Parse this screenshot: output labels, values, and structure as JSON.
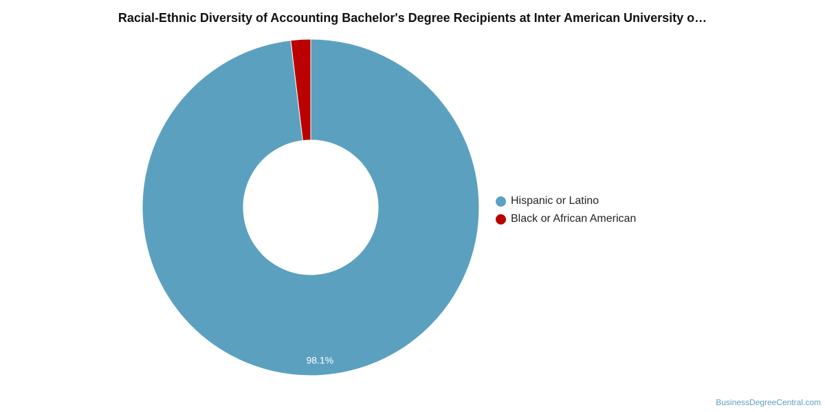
{
  "chart_data": {
    "type": "pie",
    "donut": true,
    "title": "Racial-Ethnic Diversity of Accounting Bachelor's Degree Recipients at Inter American University o…",
    "categories": [
      "Hispanic or Latino",
      "Black or African American"
    ],
    "values": [
      98.1,
      1.9
    ],
    "colors": [
      "#5ba1bf",
      "#bb0000"
    ],
    "data_labels": [
      "98.1%",
      ""
    ],
    "legend_position": "right"
  },
  "source_label": "BusinessDegreeCentral.com"
}
